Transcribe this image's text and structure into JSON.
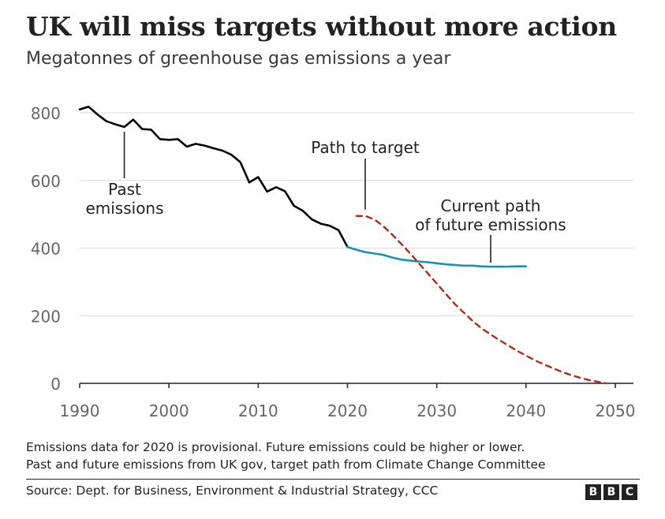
{
  "header": {
    "title": "UK will miss targets without more action",
    "subtitle": "Megatonnes of greenhouse gas emissions a year"
  },
  "chart_data": {
    "type": "line",
    "title": "UK will miss targets without more action",
    "subtitle": "Megatonnes of greenhouse gas emissions a year",
    "xlabel": "",
    "ylabel": "",
    "xlim": [
      1990,
      2050
    ],
    "ylim": [
      0,
      800
    ],
    "x_ticks": [
      1990,
      2000,
      2010,
      2020,
      2030,
      2040,
      2050
    ],
    "y_ticks": [
      0,
      200,
      400,
      600,
      800
    ],
    "grid": "horizontal",
    "colors": {
      "past": "#000000",
      "current": "#1f8fb0",
      "target": "#a82e1f",
      "grid": "#d9d9d9",
      "axis": "#222222"
    },
    "series": [
      {
        "name": "Past emissions",
        "style": "solid",
        "x": [
          1990,
          1991,
          1992,
          1993,
          1994,
          1995,
          1996,
          1997,
          1998,
          1999,
          2000,
          2001,
          2002,
          2003,
          2004,
          2005,
          2006,
          2007,
          2008,
          2009,
          2010,
          2011,
          2012,
          2013,
          2014,
          2015,
          2016,
          2017,
          2018,
          2019,
          2020
        ],
        "values": [
          810,
          818,
          795,
          775,
          766,
          758,
          780,
          752,
          750,
          722,
          720,
          722,
          700,
          708,
          703,
          695,
          688,
          676,
          654,
          594,
          610,
          567,
          580,
          568,
          525,
          510,
          485,
          472,
          466,
          453,
          403
        ]
      },
      {
        "name": "Current path of future emissions",
        "style": "solid",
        "x": [
          2020,
          2021,
          2022,
          2023,
          2024,
          2025,
          2026,
          2027,
          2028,
          2029,
          2030,
          2031,
          2032,
          2033,
          2034,
          2035,
          2036,
          2037,
          2038,
          2039,
          2040
        ],
        "values": [
          403,
          395,
          388,
          384,
          380,
          372,
          366,
          363,
          360,
          358,
          355,
          352,
          350,
          348,
          348,
          346,
          345,
          345,
          345,
          346,
          346
        ]
      },
      {
        "name": "Path to target",
        "style": "dashed",
        "x": [
          2021,
          2022,
          2023,
          2024,
          2025,
          2026,
          2027,
          2028,
          2029,
          2030,
          2031,
          2032,
          2033,
          2034,
          2035,
          2036,
          2037,
          2038,
          2039,
          2040,
          2041,
          2042,
          2043,
          2044,
          2045,
          2046,
          2047,
          2048,
          2049
        ],
        "values": [
          495,
          495,
          485,
          465,
          440,
          413,
          385,
          355,
          325,
          295,
          265,
          235,
          210,
          185,
          163,
          145,
          128,
          112,
          96,
          82,
          68,
          56,
          45,
          34,
          25,
          17,
          10,
          5,
          0
        ]
      }
    ],
    "annotations": [
      {
        "text_lines": [
          "Past",
          "emissions"
        ],
        "x": 1995,
        "y": 758
      },
      {
        "text_lines": [
          "Path to target"
        ],
        "x": 2022,
        "y": 495
      },
      {
        "text_lines": [
          "Current path",
          "of future emissions"
        ],
        "x": 2036,
        "y": 345
      }
    ]
  },
  "footer": {
    "note_line1": "Emissions data for 2020 is provisional. Future emissions could be higher or lower.",
    "note_line2": "Past and future emissions from UK gov, target path from Climate Change Committee",
    "source": "Source: Dept. for Business, Environment & Industrial Strategy, CCC",
    "logo_letters": [
      "B",
      "B",
      "C"
    ]
  }
}
